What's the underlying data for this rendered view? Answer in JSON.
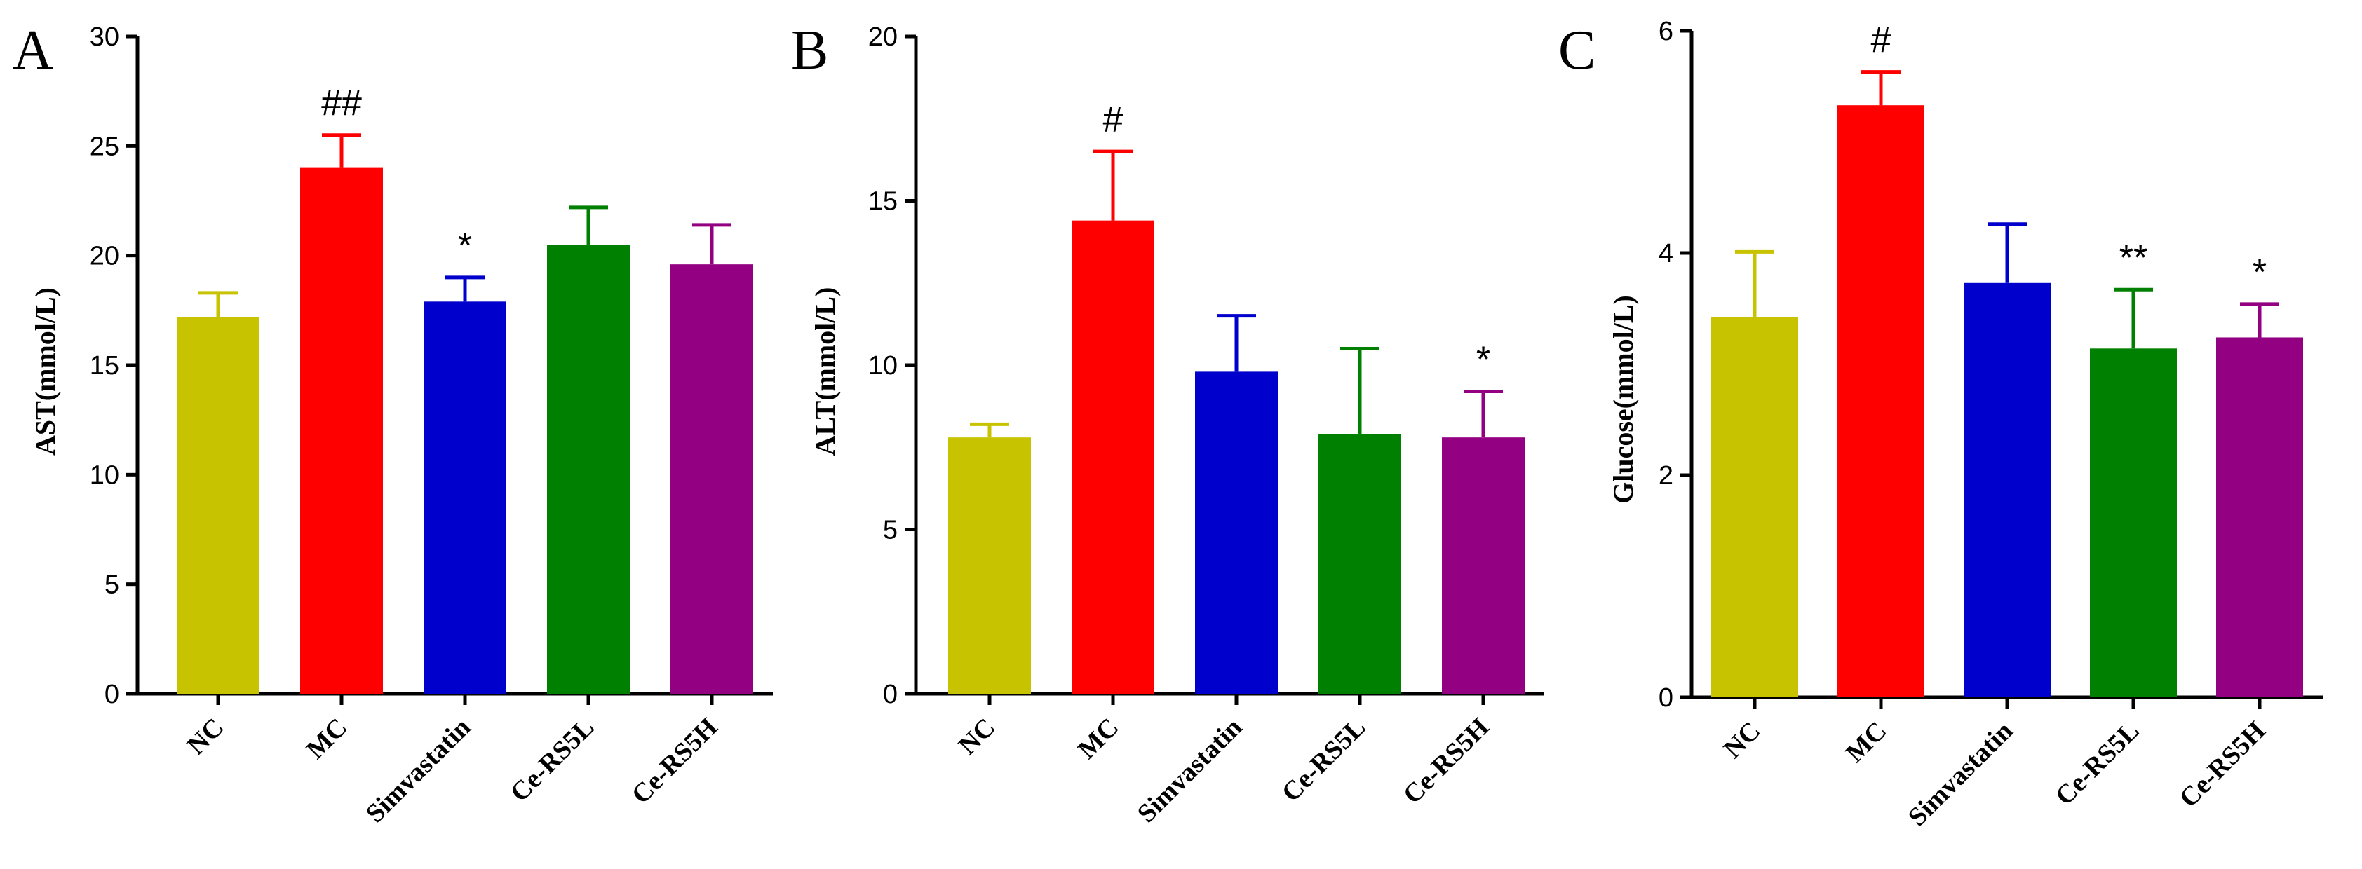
{
  "chart_data": [
    {
      "type": "bar",
      "panel": "A",
      "ylabel": "AST(mmol/L)",
      "ylim": [
        0,
        30
      ],
      "yticks": [
        0,
        5,
        10,
        15,
        20,
        25,
        30
      ],
      "categories": [
        "NC",
        "MC",
        "Simvastatin",
        "Ce-RS5L",
        "Ce-RS5H"
      ],
      "values": [
        17.2,
        24.0,
        17.9,
        20.5,
        19.6
      ],
      "errors": [
        1.1,
        1.5,
        1.1,
        1.7,
        1.8
      ],
      "annotations": [
        "",
        "##",
        "*",
        "",
        ""
      ],
      "colors": [
        "#c8c300",
        "#ff0000",
        "#0000cc",
        "#008000",
        "#940082"
      ]
    },
    {
      "type": "bar",
      "panel": "B",
      "ylabel": "ALT(mmol/L)",
      "ylim": [
        0,
        20
      ],
      "yticks": [
        0,
        5,
        10,
        15,
        20
      ],
      "categories": [
        "NC",
        "MC",
        "Simvastatin",
        "Ce-RS5L",
        "Ce-RS5H"
      ],
      "values": [
        7.8,
        14.4,
        9.8,
        7.9,
        7.8
      ],
      "errors": [
        0.4,
        2.1,
        1.7,
        2.6,
        1.4
      ],
      "annotations": [
        "",
        "#",
        "",
        "",
        "*"
      ],
      "colors": [
        "#c8c300",
        "#ff0000",
        "#0000cc",
        "#008000",
        "#940082"
      ]
    },
    {
      "type": "bar",
      "panel": "C",
      "ylabel": "Glucose(mmol/L)",
      "ylim": [
        0,
        6
      ],
      "yticks": [
        0,
        2,
        4,
        6
      ],
      "categories": [
        "NC",
        "MC",
        "Simvastatin",
        "Ce-RS5L",
        "Ce-RS5H"
      ],
      "values": [
        3.42,
        5.33,
        3.73,
        3.14,
        3.24
      ],
      "errors": [
        0.59,
        0.3,
        0.53,
        0.53,
        0.3
      ],
      "annotations": [
        "",
        "#",
        "",
        "**",
        "*"
      ],
      "colors": [
        "#c8c300",
        "#ff0000",
        "#0000cc",
        "#008000",
        "#940082"
      ]
    }
  ]
}
